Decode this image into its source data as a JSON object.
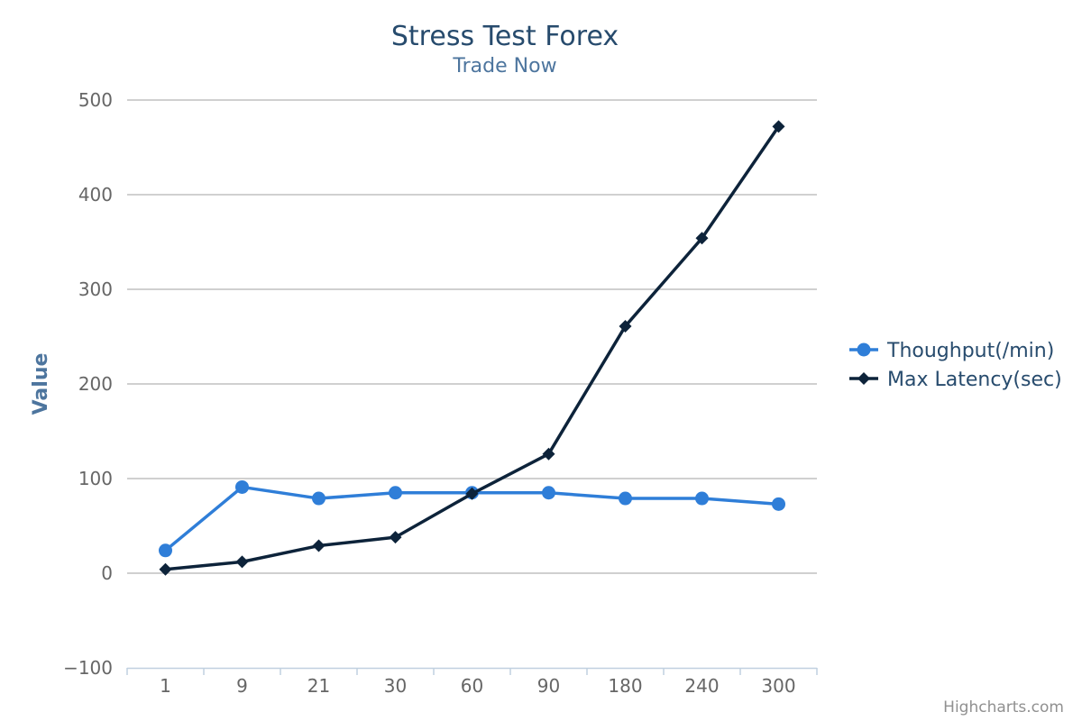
{
  "chart_data": {
    "type": "line",
    "title": "Stress Test Forex",
    "subtitle": "Trade Now",
    "xlabel": "",
    "ylabel": "Value",
    "categories": [
      "1",
      "9",
      "21",
      "30",
      "60",
      "90",
      "180",
      "240",
      "300"
    ],
    "ylim": [
      -100,
      500
    ],
    "yticks": [
      -100,
      0,
      100,
      200,
      300,
      400,
      500
    ],
    "grid": true,
    "legend_position": "right",
    "series": [
      {
        "name": "Thoughput(/min)",
        "marker": "circle",
        "color": "#2f7ed8",
        "values": [
          24,
          91,
          79,
          85,
          85,
          85,
          79,
          79,
          73
        ]
      },
      {
        "name": "Max Latency(sec)",
        "marker": "diamond",
        "color": "#0d233a",
        "values": [
          4,
          12,
          29,
          38,
          84,
          126,
          261,
          354,
          472
        ]
      }
    ]
  },
  "credits": "Highcharts.com"
}
